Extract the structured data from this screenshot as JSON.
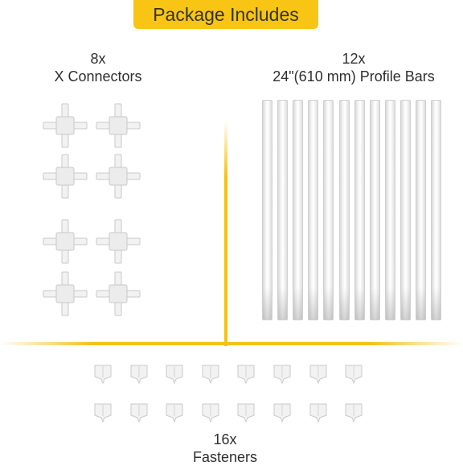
{
  "header": {
    "title": "Package Includes"
  },
  "connectors": {
    "count": "8x",
    "name": "X Connectors",
    "quantity": 8
  },
  "bars": {
    "count": "12x",
    "name": "24\"(610 mm) Profile Bars",
    "quantity": 12
  },
  "fasteners": {
    "count": "16x",
    "name": "Fasteners",
    "quantity": 16
  },
  "colors": {
    "accent": "#f8c514",
    "text": "#2f2f2f",
    "part": "#f2f2f2",
    "part_edge": "#c9c9c9"
  }
}
